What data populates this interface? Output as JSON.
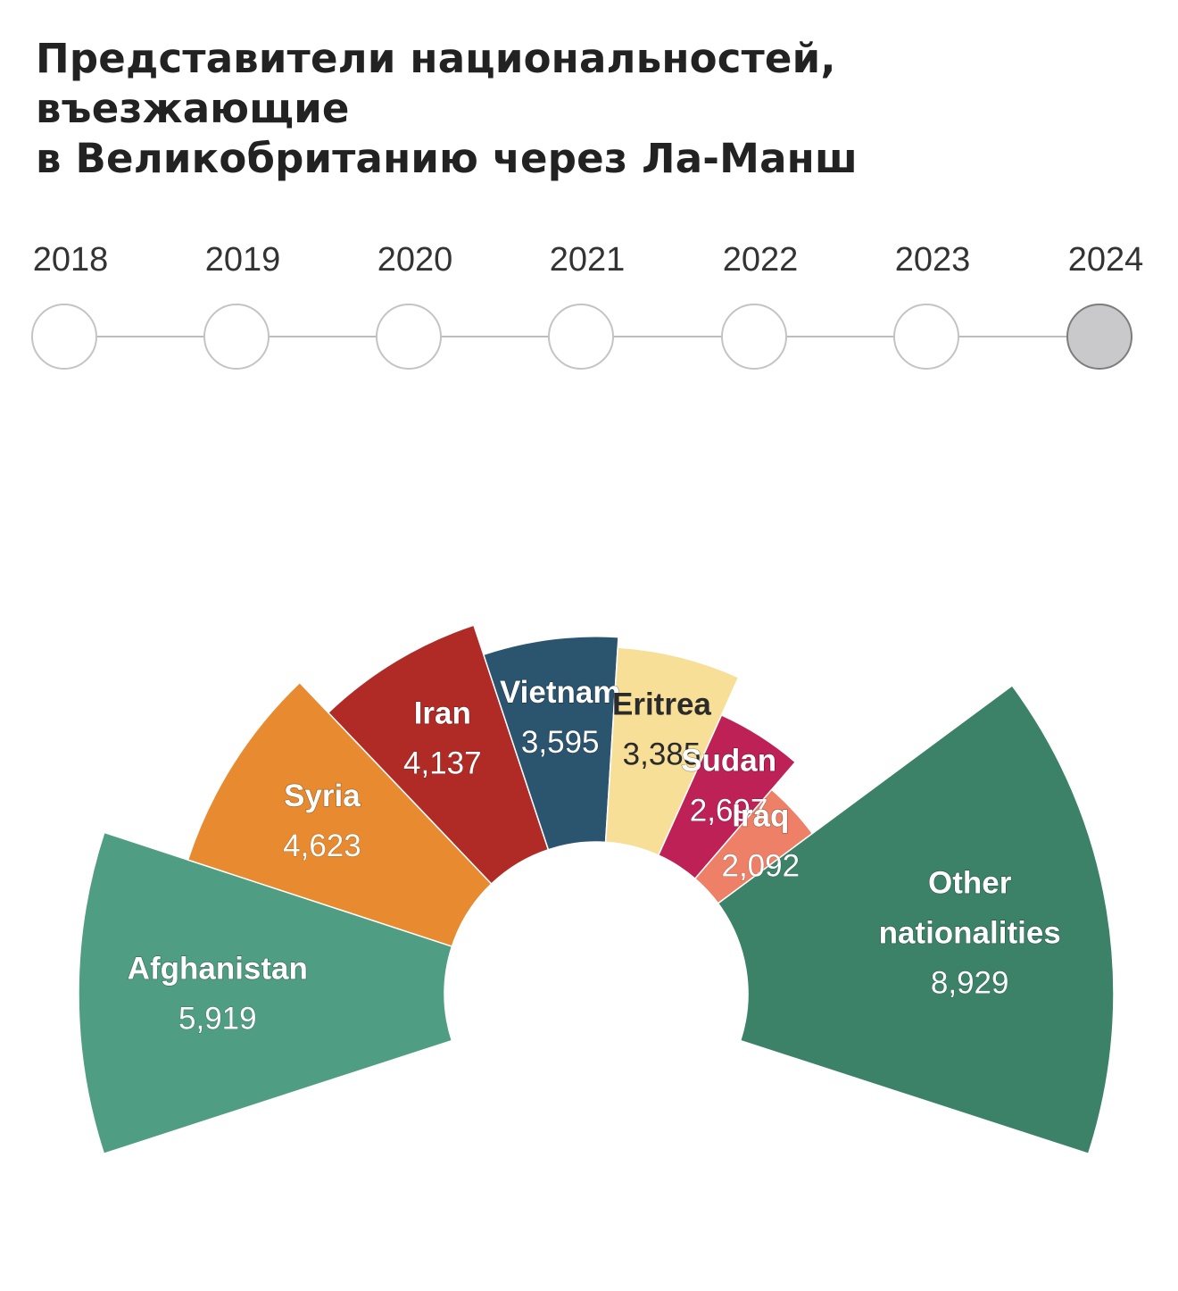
{
  "title": {
    "line1": "Представители национальностей, въезжающие",
    "line2": "в Великобританию через Ла-Манш"
  },
  "timeline": {
    "years": [
      "2018",
      "2019",
      "2020",
      "2021",
      "2022",
      "2023",
      "2024"
    ],
    "selected": "2024"
  },
  "chart_data": {
    "type": "pie",
    "variant": "semicircle-donut",
    "year": "2024",
    "categories": [
      "Afghanistan",
      "Syria",
      "Iran",
      "Vietnam",
      "Eritrea",
      "Sudan",
      "Iraq",
      "Other nationalities"
    ],
    "label_lines": [
      [
        "Afghanistan"
      ],
      [
        "Syria"
      ],
      [
        "Iran"
      ],
      [
        "Vietnam"
      ],
      [
        "Eritrea"
      ],
      [
        "Sudan"
      ],
      [
        "Iraq"
      ],
      [
        "Other",
        "nationalities"
      ]
    ],
    "values": [
      5919,
      4623,
      4137,
      3595,
      3385,
      2697,
      2092,
      8929
    ],
    "value_labels": [
      "5,919",
      "4,623",
      "4,137",
      "3,595",
      "3,385",
      "2,697",
      "2,092",
      "8,929"
    ],
    "colors": [
      "#4f9d82",
      "#e88a30",
      "#b12b26",
      "#2b546e",
      "#f7df98",
      "#bd2155",
      "#ed8066",
      "#3b8268"
    ],
    "dark_text": [
      false,
      false,
      false,
      false,
      true,
      false,
      false,
      false
    ],
    "outer_radius_scale": [
      1.0,
      0.83,
      0.75,
      0.69,
      0.67,
      0.59,
      0.52,
      1.0
    ]
  }
}
